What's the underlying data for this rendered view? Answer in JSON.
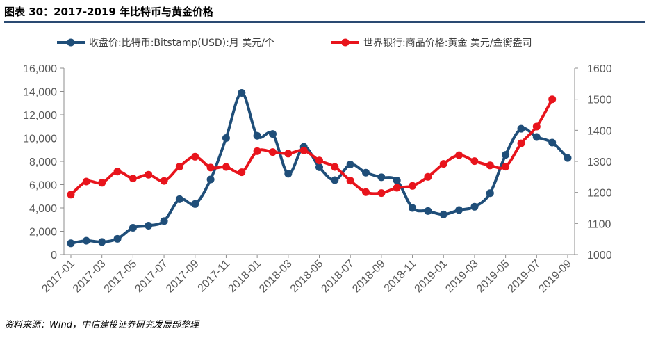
{
  "figure": {
    "title": "图表 30：2017-2019 年比特币与黄金价格",
    "source": "资料来源：Wind，中信建投证券研究发展部整理"
  },
  "chart_data": {
    "type": "line",
    "x": [
      "2017-01",
      "2017-02",
      "2017-03",
      "2017-04",
      "2017-05",
      "2017-06",
      "2017-07",
      "2017-08",
      "2017-09",
      "2017-10",
      "2017-11",
      "2017-12",
      "2018-01",
      "2018-02",
      "2018-03",
      "2018-04",
      "2018-05",
      "2018-06",
      "2018-07",
      "2018-08",
      "2018-09",
      "2018-10",
      "2018-11",
      "2018-12",
      "2019-01",
      "2019-02",
      "2019-03",
      "2019-04",
      "2019-05",
      "2019-06",
      "2019-07",
      "2019-08",
      "2019-09"
    ],
    "x_tick_labels": [
      "2017-01",
      "2017-03",
      "2017-05",
      "2017-07",
      "2017-09",
      "2017-11",
      "2018-01",
      "2018-03",
      "2018-05",
      "2018-07",
      "2018-09",
      "2018-11",
      "2019-01",
      "2019-03",
      "2019-05",
      "2019-07",
      "2019-09"
    ],
    "series": [
      {
        "name": "收盘价:比特币:Bitstamp(USD):月 美元/个",
        "axis": "left",
        "color": "#1f4e79",
        "values": [
          970,
          1190,
          1080,
          1350,
          2300,
          2480,
          2870,
          4750,
          4340,
          6450,
          10000,
          13880,
          10200,
          10350,
          6930,
          9250,
          7500,
          6390,
          7730,
          7030,
          6630,
          6360,
          4000,
          3740,
          3440,
          3820,
          4100,
          5270,
          8560,
          10800,
          10090,
          9610,
          8290
        ]
      },
      {
        "name": "世界银行:商品价格:黄金 美元/金衡盎司",
        "axis": "right",
        "color": "#e8141c",
        "values": [
          1193,
          1235,
          1231,
          1267,
          1245,
          1257,
          1237,
          1283,
          1315,
          1280,
          1282,
          1265,
          1333,
          1330,
          1325,
          1335,
          1303,
          1282,
          1238,
          1201,
          1198,
          1215,
          1221,
          1250,
          1292,
          1320,
          1301,
          1287,
          1283,
          1358,
          1412,
          1500,
          null
        ]
      }
    ],
    "y_left": {
      "min": 0,
      "max": 16000,
      "ticks": [
        "0",
        "2,000",
        "4,000",
        "6,000",
        "8,000",
        "10,000",
        "12,000",
        "14,000",
        "16,000"
      ]
    },
    "y_right": {
      "min": 1000,
      "max": 1600,
      "ticks": [
        "1000",
        "1100",
        "1200",
        "1300",
        "1400",
        "1500",
        "1600"
      ]
    },
    "legend_position": "top"
  }
}
